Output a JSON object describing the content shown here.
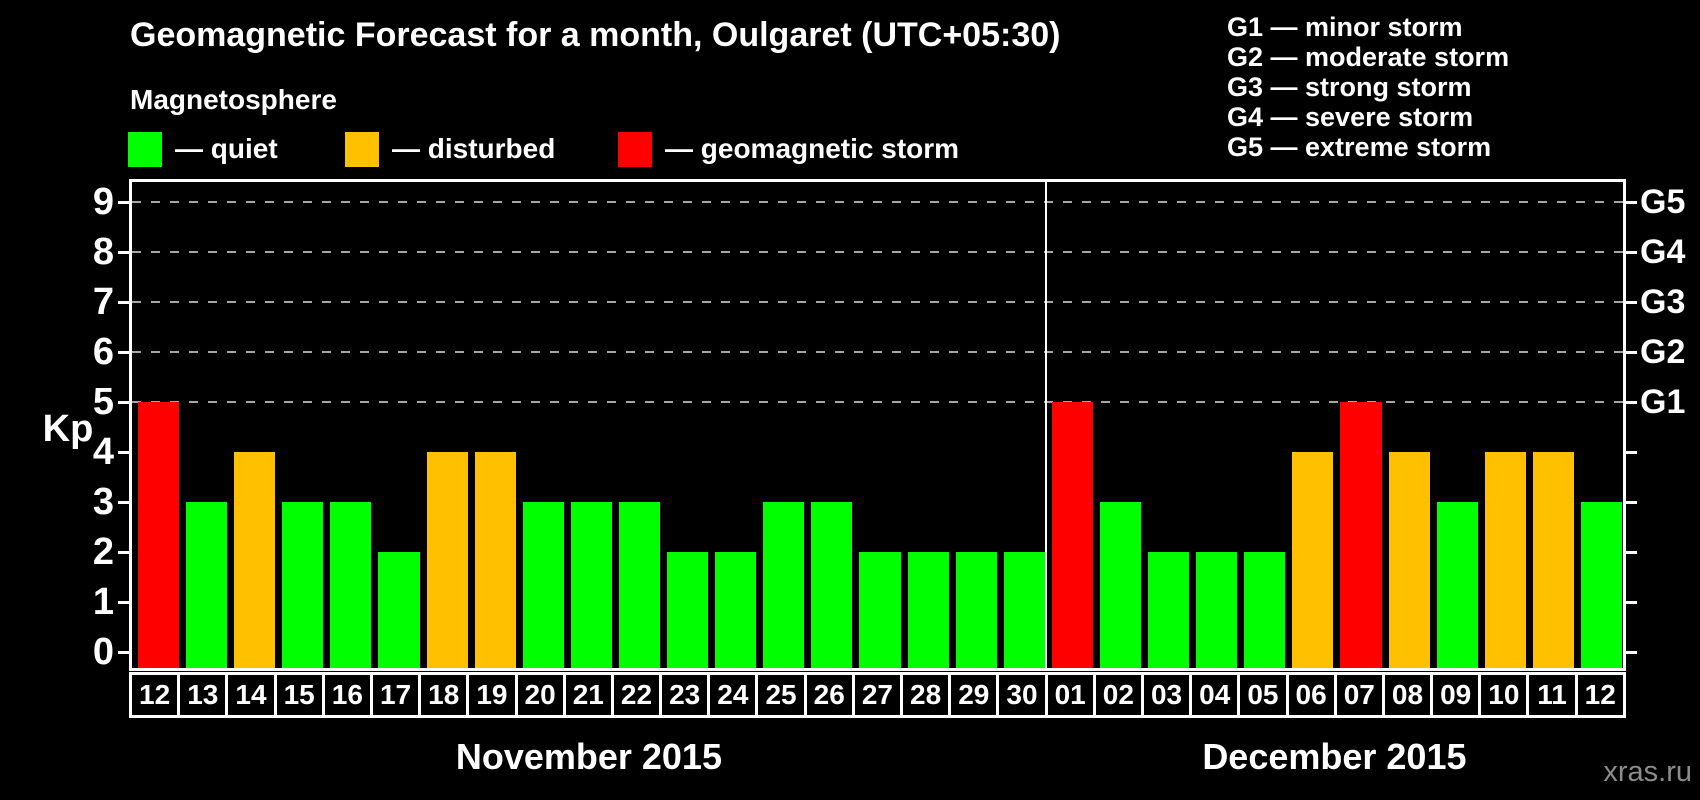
{
  "watermark": "xras.ru",
  "chart_data": {
    "type": "bar",
    "title": "Geomagnetic Forecast for a month, Oulgaret (UTC+05:30)",
    "subtitle": "Magnetosphere",
    "ylabel": "Kp",
    "ylim": [
      0,
      9
    ],
    "yticks": [
      0,
      1,
      2,
      3,
      4,
      5,
      6,
      7,
      8,
      9
    ],
    "gridlines_at": [
      5,
      6,
      7,
      8,
      9
    ],
    "grid_style": "dashed",
    "legend_position": "top-left",
    "status_colors": {
      "quiet": "#00ff00",
      "disturbed": "#ffc000",
      "storm": "#ff0000"
    },
    "legend": [
      {
        "status": "quiet",
        "label": "— quiet",
        "color": "#00ff00"
      },
      {
        "status": "disturbed",
        "label": "— disturbed",
        "color": "#ffc000"
      },
      {
        "status": "storm",
        "label": "— geomagnetic storm",
        "color": "#ff0000"
      }
    ],
    "right_axis": [
      {
        "label": "G1",
        "kp": 5
      },
      {
        "label": "G2",
        "kp": 6
      },
      {
        "label": "G3",
        "kp": 7
      },
      {
        "label": "G4",
        "kp": 8
      },
      {
        "label": "G5",
        "kp": 9
      }
    ],
    "g_scale_legend": [
      "G1 — minor storm",
      "G2 — moderate storm",
      "G3 — strong storm",
      "G4 — severe storm",
      "G5 — extreme storm"
    ],
    "months": [
      {
        "label": "November 2015",
        "bars": [
          {
            "day": "12",
            "kp": 5,
            "status": "storm"
          },
          {
            "day": "13",
            "kp": 3,
            "status": "quiet"
          },
          {
            "day": "14",
            "kp": 4,
            "status": "disturbed"
          },
          {
            "day": "15",
            "kp": 3,
            "status": "quiet"
          },
          {
            "day": "16",
            "kp": 3,
            "status": "quiet"
          },
          {
            "day": "17",
            "kp": 2,
            "status": "quiet"
          },
          {
            "day": "18",
            "kp": 4,
            "status": "disturbed"
          },
          {
            "day": "19",
            "kp": 4,
            "status": "disturbed"
          },
          {
            "day": "20",
            "kp": 3,
            "status": "quiet"
          },
          {
            "day": "21",
            "kp": 3,
            "status": "quiet"
          },
          {
            "day": "22",
            "kp": 3,
            "status": "quiet"
          },
          {
            "day": "23",
            "kp": 2,
            "status": "quiet"
          },
          {
            "day": "24",
            "kp": 2,
            "status": "quiet"
          },
          {
            "day": "25",
            "kp": 3,
            "status": "quiet"
          },
          {
            "day": "26",
            "kp": 3,
            "status": "quiet"
          },
          {
            "day": "27",
            "kp": 2,
            "status": "quiet"
          },
          {
            "day": "28",
            "kp": 2,
            "status": "quiet"
          },
          {
            "day": "29",
            "kp": 2,
            "status": "quiet"
          },
          {
            "day": "30",
            "kp": 2,
            "status": "quiet"
          }
        ]
      },
      {
        "label": "December 2015",
        "bars": [
          {
            "day": "01",
            "kp": 5,
            "status": "storm"
          },
          {
            "day": "02",
            "kp": 3,
            "status": "quiet"
          },
          {
            "day": "03",
            "kp": 2,
            "status": "quiet"
          },
          {
            "day": "04",
            "kp": 2,
            "status": "quiet"
          },
          {
            "day": "05",
            "kp": 2,
            "status": "quiet"
          },
          {
            "day": "06",
            "kp": 4,
            "status": "disturbed"
          },
          {
            "day": "07",
            "kp": 5,
            "status": "storm"
          },
          {
            "day": "08",
            "kp": 4,
            "status": "disturbed"
          },
          {
            "day": "09",
            "kp": 3,
            "status": "quiet"
          },
          {
            "day": "10",
            "kp": 4,
            "status": "disturbed"
          },
          {
            "day": "11",
            "kp": 4,
            "status": "disturbed"
          },
          {
            "day": "12",
            "kp": 3,
            "status": "quiet"
          }
        ]
      }
    ]
  }
}
